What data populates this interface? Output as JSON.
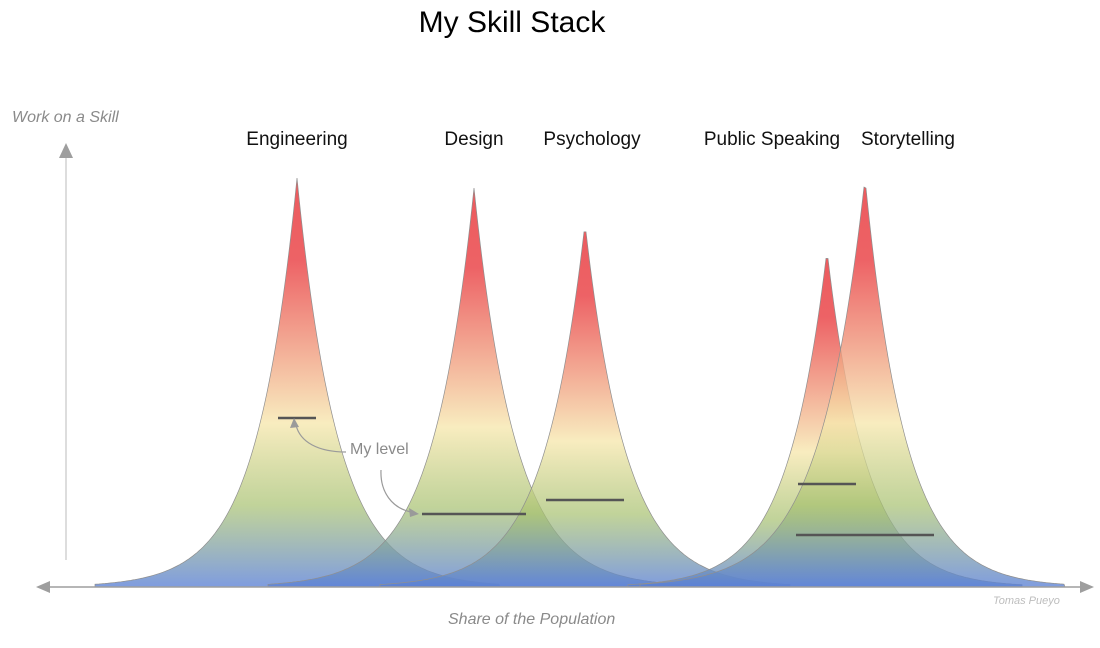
{
  "title": "My Skill Stack",
  "axis": {
    "y_label": "Work on a Skill",
    "x_label": "Share of the Population"
  },
  "credit": "Tomas Pueyo",
  "annotation": {
    "text": "My level"
  },
  "colors": {
    "peak": "#e8363a",
    "mid": "#f6e7ad",
    "green": "#a6c06e",
    "base": "#5a80d6",
    "axis": "#9e9e9e",
    "level": "#555555"
  },
  "skills": [
    {
      "label": "Engineering"
    },
    {
      "label": "Design"
    },
    {
      "label": "Psychology"
    },
    {
      "label": "Public Speaking"
    },
    {
      "label": "Storytelling"
    }
  ]
}
